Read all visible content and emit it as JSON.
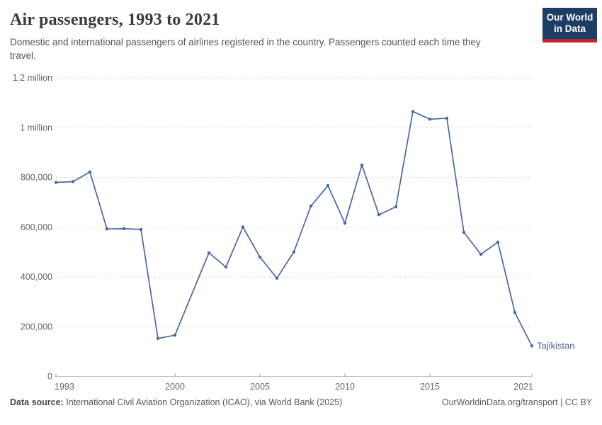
{
  "header": {
    "title": "Air passengers, 1993 to 2021",
    "subtitle": "Domestic and international passengers of airlines registered in the country. Passengers counted each time they travel.",
    "logo": {
      "line1": "Our World",
      "line2": "in Data",
      "bg_color": "#1d3d63",
      "bar_color": "#c1242d"
    }
  },
  "chart_data": {
    "type": "line",
    "title": "Air passengers, 1993 to 2021",
    "xlabel": "",
    "ylabel": "",
    "xlim": [
      1993,
      2021
    ],
    "ylim": [
      0,
      1200000
    ],
    "grid": "horizontal-dashed",
    "legend_position": "end-of-line-label",
    "x": [
      1993,
      1994,
      1995,
      1996,
      1997,
      1998,
      1999,
      2000,
      2001,
      2002,
      2003,
      2004,
      2005,
      2006,
      2007,
      2008,
      2009,
      2010,
      2011,
      2012,
      2013,
      2014,
      2015,
      2016,
      2017,
      2018,
      2019,
      2020,
      2021
    ],
    "series": [
      {
        "name": "Tajikistan",
        "color": "#4a67a3",
        "values": [
          780000,
          783000,
          822000,
          593000,
          594000,
          591000,
          153000,
          166000,
          null,
          497000,
          440000,
          601000,
          480000,
          395000,
          501000,
          685000,
          767000,
          616000,
          850000,
          650000,
          682000,
          1065000,
          1034000,
          1038000,
          579000,
          491000,
          540000,
          257000,
          123000
        ]
      }
    ],
    "note": "2001 value is missing; line connects 2000 to 2002 directly",
    "x_ticks": [
      1993,
      2000,
      2005,
      2010,
      2015,
      2021
    ],
    "y_ticks": [
      {
        "value": 0,
        "label": "0"
      },
      {
        "value": 200000,
        "label": "200,000"
      },
      {
        "value": 400000,
        "label": "400,000"
      },
      {
        "value": 600000,
        "label": "600,000"
      },
      {
        "value": 800000,
        "label": "800,000"
      },
      {
        "value": 1000000,
        "label": "1 million"
      },
      {
        "value": 1200000,
        "label": "1.2 million"
      }
    ],
    "entity_label": "Tajikistan"
  },
  "colors": {
    "line": "#4a67a3",
    "gridline": "#dedede",
    "axis_line": "#c4c4c4",
    "tick_mark": "#999999",
    "tick_text": "#666666",
    "title_text": "#3b3b3b",
    "subtitle_text": "#555555"
  },
  "footer": {
    "source_label": "Data source:",
    "source_text": "International Civil Aviation Organization (ICAO), via World Bank (2025)",
    "link": "OurWorldinData.org/transport",
    "divider": "|",
    "license": "CC BY"
  }
}
